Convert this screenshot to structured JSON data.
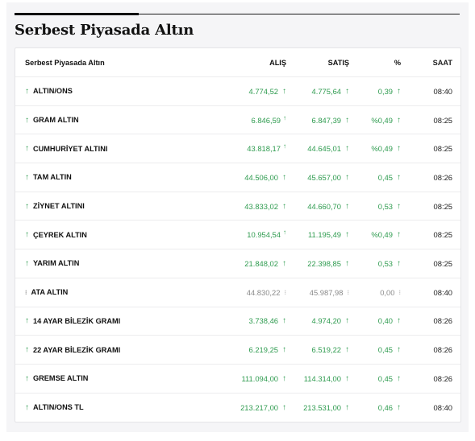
{
  "page": {
    "title": "Serbest Piyasada Altın"
  },
  "table": {
    "headers": {
      "name": "Serbest Piyasada Altın",
      "alis": "ALIŞ",
      "satis": "SATIŞ",
      "pct": "%",
      "saat": "SAAT"
    },
    "rows": [
      {
        "name": "ALTIN/ONS",
        "alis": "4.774,52",
        "satis": "4.775,64",
        "pct": "0,39",
        "saat": "08:40",
        "trend": "up",
        "alis_icon": "arrow-up-icon",
        "satis_icon": "arrow-up-icon"
      },
      {
        "name": "GRAM ALTIN",
        "alis": "6.846,59",
        "satis": "6.847,39",
        "pct": "%0,49",
        "saat": "08:25",
        "trend": "up",
        "alis_icon": "thin-arrow-up-icon",
        "satis_icon": "arrow-up-icon"
      },
      {
        "name": "CUMHURİYET ALTINI",
        "alis": "43.818,17",
        "satis": "44.645,01",
        "pct": "%0,49",
        "saat": "08:25",
        "trend": "up",
        "alis_icon": "thin-arrow-up-icon",
        "satis_icon": "arrow-up-icon"
      },
      {
        "name": "TAM ALTIN",
        "alis": "44.506,00",
        "satis": "45.657,00",
        "pct": "0,45",
        "saat": "08:26",
        "trend": "up",
        "alis_icon": "arrow-up-icon",
        "satis_icon": "arrow-up-icon"
      },
      {
        "name": "ZİYNET ALTINI",
        "alis": "43.833,02",
        "satis": "44.660,70",
        "pct": "0,53",
        "saat": "08:25",
        "trend": "up",
        "alis_icon": "arrow-up-icon",
        "satis_icon": "arrow-up-icon"
      },
      {
        "name": "ÇEYREK ALTIN",
        "alis": "10.954,54",
        "satis": "11.195,49",
        "pct": "%0,49",
        "saat": "08:25",
        "trend": "up",
        "alis_icon": "thin-arrow-up-icon",
        "satis_icon": "arrow-up-icon"
      },
      {
        "name": "YARIM ALTIN",
        "alis": "21.848,02",
        "satis": "22.398,85",
        "pct": "0,53",
        "saat": "08:25",
        "trend": "up",
        "alis_icon": "arrow-up-icon",
        "satis_icon": "arrow-up-icon"
      },
      {
        "name": "ATA ALTIN",
        "alis": "44.830,22",
        "satis": "45.987,98",
        "pct": "0,00",
        "saat": "08:40",
        "trend": "neutral",
        "alis_icon": "neutral-icon",
        "satis_icon": "neutral-icon"
      },
      {
        "name": "14 AYAR BİLEZİK GRAMI",
        "alis": "3.738,46",
        "satis": "4.974,20",
        "pct": "0,40",
        "saat": "08:26",
        "trend": "up",
        "alis_icon": "arrow-up-icon",
        "satis_icon": "arrow-up-icon"
      },
      {
        "name": "22 AYAR BİLEZİK GRAMI",
        "alis": "6.219,25",
        "satis": "6.519,22",
        "pct": "0,45",
        "saat": "08:26",
        "trend": "up",
        "alis_icon": "arrow-up-icon",
        "satis_icon": "arrow-up-icon"
      },
      {
        "name": "GREMSE ALTIN",
        "alis": "111.094,00",
        "satis": "114.314,00",
        "pct": "0,45",
        "saat": "08:26",
        "trend": "up",
        "alis_icon": "arrow-up-icon",
        "satis_icon": "arrow-up-icon"
      },
      {
        "name": "ALTIN/ONS TL",
        "alis": "213.217,00",
        "satis": "213.531,00",
        "pct": "0,46",
        "saat": "08:40",
        "trend": "up",
        "alis_icon": "arrow-up-icon",
        "satis_icon": "arrow-up-icon"
      }
    ]
  },
  "colors": {
    "up": "#2e9b4f",
    "neutral": "#8a8a8a",
    "title": "#111111"
  }
}
